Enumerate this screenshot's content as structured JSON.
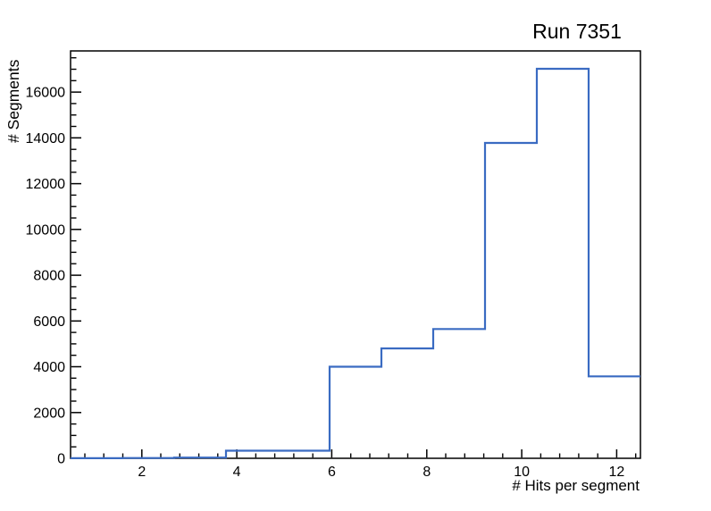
{
  "chart_data": {
    "type": "bar",
    "subtype": "step-histogram",
    "title": "Run 7351",
    "xlabel": "# Hits per segment",
    "ylabel": "# Segments",
    "x_range": [
      0.5,
      12.5
    ],
    "y_range": [
      0,
      17800
    ],
    "bin_edges": [
      0.5,
      1.5909,
      2.6818,
      3.7727,
      4.8636,
      5.9545,
      7.0455,
      8.1364,
      9.2273,
      10.3182,
      11.4091,
      12.5
    ],
    "values": [
      5,
      10,
      30,
      330,
      330,
      4000,
      4800,
      5650,
      13780,
      17020,
      3580
    ],
    "x_major_ticks": [
      2,
      4,
      6,
      8,
      10,
      12
    ],
    "x_tick_labels": [
      "2",
      "4",
      "6",
      "8",
      "10",
      "12"
    ],
    "x_minor_step": 0.4,
    "y_major_ticks": [
      0,
      2000,
      4000,
      6000,
      8000,
      10000,
      12000,
      14000,
      16000
    ],
    "y_tick_labels": [
      "0",
      "2000",
      "4000",
      "6000",
      "8000",
      "10000",
      "12000",
      "14000",
      "16000"
    ],
    "y_minor_step": 500,
    "grid": false,
    "legend": null,
    "line_color": "#3a6bc2",
    "axis_color": "#000000",
    "background_color": "#ffffff"
  }
}
